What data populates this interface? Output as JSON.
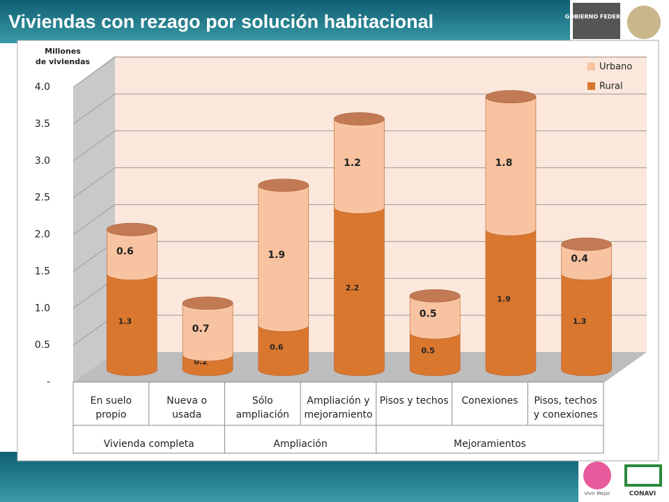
{
  "header": {
    "title": "Viviendas con rezago por solución habitacional"
  },
  "logos": {
    "gobierno": "GOBIERNO FEDERAL",
    "vivir": "Vivir Mejor",
    "conavi": "CONAVI"
  },
  "chart_data": {
    "type": "bar",
    "y_label": [
      "Millones",
      "de viviendas"
    ],
    "categories": [
      "En suelo propio",
      "Nueva o usada",
      "Sólo ampliación",
      "Ampliación y mejoramiento",
      "Pisos y techos",
      "Conexiones",
      "Pisos, techos y conexiones"
    ],
    "groups": [
      {
        "name": "Vivienda completa",
        "span": 2
      },
      {
        "name": "Ampliación",
        "span": 2
      },
      {
        "name": "Mejoramientos",
        "span": 3
      }
    ],
    "series": [
      {
        "name": "Rural",
        "color": "#d9772f",
        "values": [
          1.3,
          0.2,
          0.6,
          2.2,
          0.5,
          1.9,
          1.3
        ]
      },
      {
        "name": "Urbano",
        "color": "#f8c3a0",
        "values": [
          0.6,
          0.7,
          1.9,
          1.2,
          0.5,
          1.8,
          0.4
        ]
      }
    ],
    "stacked": true,
    "ylim": [
      0,
      4
    ],
    "yticks": [
      {
        "value": 0,
        "label": "-"
      },
      0.5,
      {
        "value": 1,
        "label": "1.0"
      },
      1.5,
      {
        "value": 2,
        "label": "2.0"
      },
      2.5,
      {
        "value": 3,
        "label": "3.0"
      },
      3.5,
      {
        "value": 4,
        "label": "4.0"
      }
    ],
    "grid": true,
    "legend": "top-right"
  }
}
